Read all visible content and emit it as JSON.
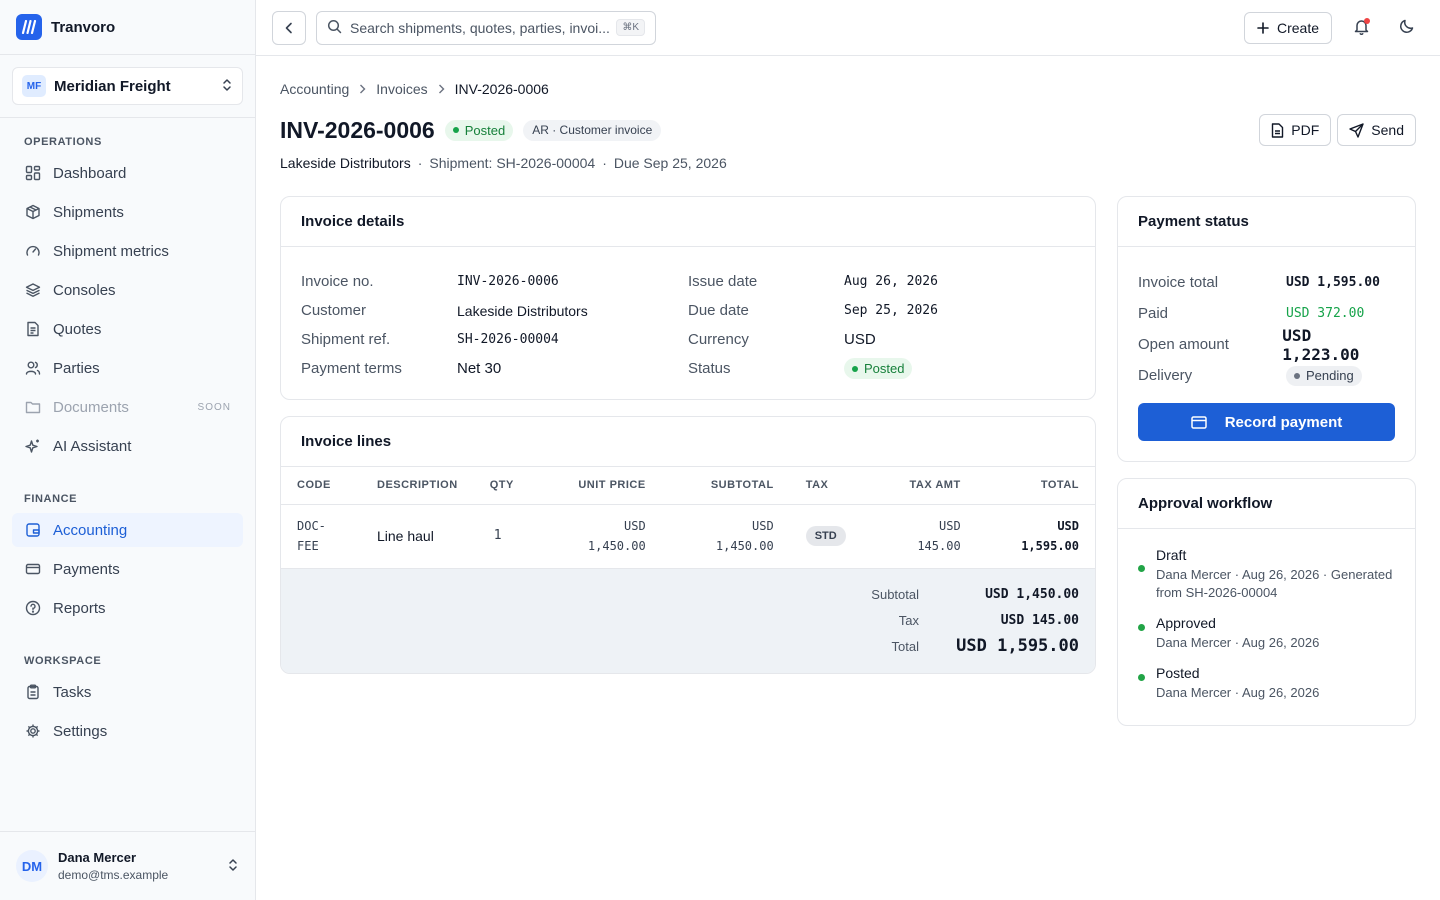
{
  "brand": {
    "name": "Tranvoro"
  },
  "org": {
    "initials": "MF",
    "name": "Meridian Freight"
  },
  "nav": {
    "operations_label": "OPERATIONS",
    "finance_label": "FINANCE",
    "workspace_label": "WORKSPACE",
    "items": {
      "dashboard": "Dashboard",
      "shipments": "Shipments",
      "shipment_metrics": "Shipment metrics",
      "consoles": "Consoles",
      "quotes": "Quotes",
      "parties": "Parties",
      "documents": "Documents",
      "documents_badge": "SOON",
      "ai_assistant": "AI Assistant",
      "accounting": "Accounting",
      "payments": "Payments",
      "reports": "Reports",
      "tasks": "Tasks",
      "settings": "Settings"
    }
  },
  "user": {
    "initials": "DM",
    "name": "Dana Mercer",
    "email": "demo@tms.example"
  },
  "topbar": {
    "search_placeholder": "Search shipments, quotes, parties, invoi...",
    "search_shortcut": "⌘K",
    "create_label": "Create"
  },
  "breadcrumb": {
    "level1": "Accounting",
    "level2": "Invoices",
    "current": "INV-2026-0006"
  },
  "header": {
    "title": "INV-2026-0006",
    "status": "Posted",
    "type_badge": "AR · Customer invoice",
    "pdf_label": "PDF",
    "send_label": "Send",
    "customer": "Lakeside Distributors",
    "shipment": "Shipment: SH-2026-00004",
    "due": "Due Sep 25, 2026"
  },
  "details": {
    "title": "Invoice details",
    "invoice_no_label": "Invoice no.",
    "invoice_no": "INV-2026-0006",
    "customer_label": "Customer",
    "customer": "Lakeside Distributors",
    "shipment_ref_label": "Shipment ref.",
    "shipment_ref": "SH-2026-00004",
    "payment_terms_label": "Payment terms",
    "payment_terms": "Net 30",
    "issue_date_label": "Issue date",
    "issue_date": "Aug 26, 2026",
    "due_date_label": "Due date",
    "due_date": "Sep 25, 2026",
    "currency_label": "Currency",
    "currency": "USD",
    "status_label": "Status",
    "status": "Posted"
  },
  "lines": {
    "title": "Invoice lines",
    "columns": {
      "code": "CODE",
      "description": "DESCRIPTION",
      "qty": "QTY",
      "unit_price": "UNIT PRICE",
      "subtotal": "SUBTOTAL",
      "tax": "TAX",
      "tax_amt": "TAX AMT",
      "total": "TOTAL"
    },
    "rows": [
      {
        "code_1": "DOC-",
        "code_2": "FEE",
        "description": "Line haul",
        "qty": "1",
        "unit_currency": "USD",
        "unit_amount": "1,450.00",
        "subtotal_currency": "USD",
        "subtotal_amount": "1,450.00",
        "tax": "STD",
        "tax_currency": "USD",
        "tax_amount": "145.00",
        "total_currency": "USD",
        "total_amount": "1,595.00"
      }
    ],
    "subtotal_label": "Subtotal",
    "subtotal": "USD 1,450.00",
    "tax_label": "Tax",
    "tax": "USD 145.00",
    "total_label": "Total",
    "total": "USD 1,595.00"
  },
  "payment": {
    "title": "Payment status",
    "invoice_total_label": "Invoice total",
    "invoice_total": "USD 1,595.00",
    "paid_label": "Paid",
    "paid": "USD 372.00",
    "open_label": "Open amount",
    "open": "USD 1,223.00",
    "delivery_label": "Delivery",
    "delivery": "Pending",
    "record_label": "Record payment"
  },
  "workflow": {
    "title": "Approval workflow",
    "steps": [
      {
        "title": "Draft",
        "meta": "Dana Mercer · Aug 26, 2026 · Generated from SH-2026-00004"
      },
      {
        "title": "Approved",
        "meta": "Dana Mercer · Aug 26, 2026"
      },
      {
        "title": "Posted",
        "meta": "Dana Mercer · Aug 26, 2026"
      }
    ]
  },
  "colors": {
    "accent": "#1d5fd6",
    "success": "#16a34a",
    "notification": "#ef4444"
  }
}
